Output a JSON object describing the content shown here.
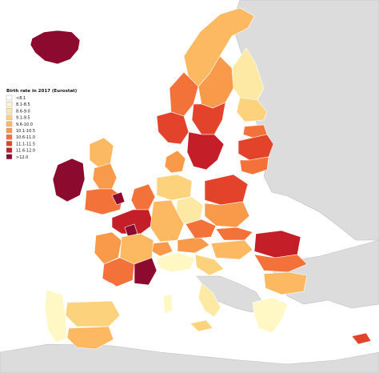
{
  "legend": {
    "title": "Birth rate in 2017 (Eurostat)",
    "classes": [
      {
        "label": "<8.1",
        "color": "#ffffff"
      },
      {
        "label": "8.1-8.5",
        "color": "#fff7c4"
      },
      {
        "label": "8.6-9.0",
        "color": "#fde9a4"
      },
      {
        "label": "9.1-9.5",
        "color": "#fdd27c"
      },
      {
        "label": "9.6-10.0",
        "color": "#fdb862"
      },
      {
        "label": "10.1-10.5",
        "color": "#f99a4b"
      },
      {
        "label": "10.6-11.0",
        "color": "#f3723a"
      },
      {
        "label": "11.1-11.5",
        "color": "#e3432b"
      },
      {
        "label": "11.6-12.0",
        "color": "#c41f28"
      },
      {
        "label": ">12.0",
        "color": "#8c0a2e"
      }
    ]
  },
  "map": {
    "outside_color": "#dcdcdc",
    "regions": [
      {
        "name": "iceland",
        "class": 9
      },
      {
        "name": "norway-south",
        "class": 7
      },
      {
        "name": "norway-mid",
        "class": 6
      },
      {
        "name": "norway-north",
        "class": 4
      },
      {
        "name": "sweden-south",
        "class": 8
      },
      {
        "name": "sweden-mid",
        "class": 7
      },
      {
        "name": "sweden-north",
        "class": 5
      },
      {
        "name": "finland-south",
        "class": 3
      },
      {
        "name": "finland-north",
        "class": 2
      },
      {
        "name": "estonia",
        "class": 6
      },
      {
        "name": "latvia",
        "class": 7
      },
      {
        "name": "lithuania",
        "class": 6
      },
      {
        "name": "denmark",
        "class": 5
      },
      {
        "name": "ireland",
        "class": 9
      },
      {
        "name": "uk-scotland",
        "class": 4
      },
      {
        "name": "uk-north",
        "class": 5
      },
      {
        "name": "uk-south",
        "class": 6
      },
      {
        "name": "london",
        "class": 9
      },
      {
        "name": "france-north",
        "class": 8
      },
      {
        "name": "paris",
        "class": 9
      },
      {
        "name": "france-west",
        "class": 5
      },
      {
        "name": "france-center",
        "class": 4
      },
      {
        "name": "france-south",
        "class": 6
      },
      {
        "name": "france-southeast",
        "class": 9
      },
      {
        "name": "benelux",
        "class": 6
      },
      {
        "name": "germany-north",
        "class": 3
      },
      {
        "name": "germany-east",
        "class": 2
      },
      {
        "name": "germany-south",
        "class": 4
      },
      {
        "name": "switzerland",
        "class": 5
      },
      {
        "name": "austria",
        "class": 5
      },
      {
        "name": "czechia",
        "class": 6
      },
      {
        "name": "poland-north",
        "class": 7
      },
      {
        "name": "poland-south",
        "class": 5
      },
      {
        "name": "slovakia",
        "class": 6
      },
      {
        "name": "hungary",
        "class": 4
      },
      {
        "name": "slovenia-croatia",
        "class": 3
      },
      {
        "name": "romania-north",
        "class": 8
      },
      {
        "name": "romania-south",
        "class": 6
      },
      {
        "name": "bulgaria",
        "class": 4
      },
      {
        "name": "italy-north",
        "class": 1
      },
      {
        "name": "italy-center",
        "class": 0
      },
      {
        "name": "italy-south",
        "class": 2
      },
      {
        "name": "sardinia",
        "class": 1
      },
      {
        "name": "sicily",
        "class": 3
      },
      {
        "name": "spain-north",
        "class": 0
      },
      {
        "name": "spain-center",
        "class": 3
      },
      {
        "name": "spain-south",
        "class": 4
      },
      {
        "name": "portugal",
        "class": 1
      },
      {
        "name": "greece",
        "class": 1
      },
      {
        "name": "cyprus",
        "class": 7
      }
    ]
  }
}
